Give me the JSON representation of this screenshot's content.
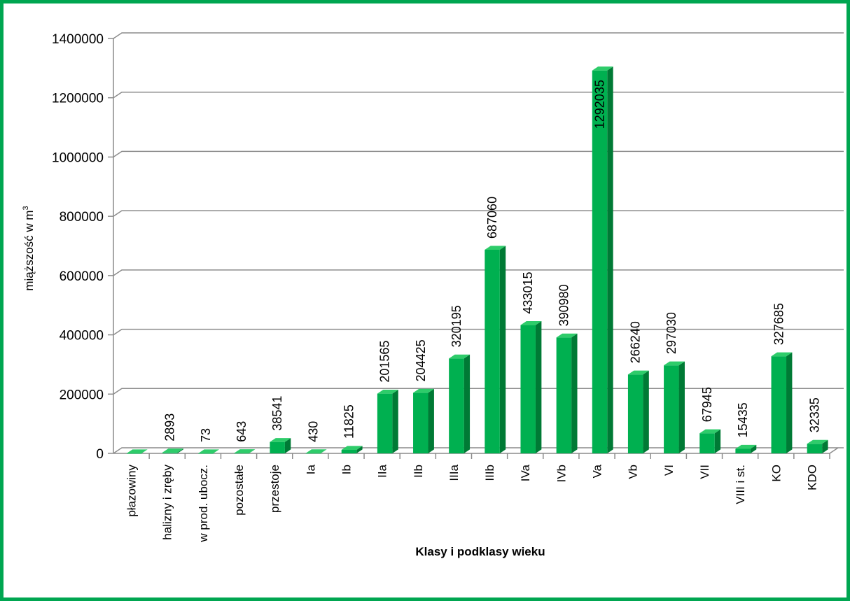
{
  "chart_data": {
    "type": "bar",
    "title": "",
    "xlabel": "Klasy i podklasy wieku",
    "ylabel_main": "miąższość w m",
    "ylabel_sup": "3",
    "ylim": [
      0,
      1400000
    ],
    "yticks": [
      0,
      200000,
      400000,
      600000,
      800000,
      1000000,
      1200000,
      1400000
    ],
    "grid": true,
    "bar_color": "#00b050",
    "categories": [
      "płazowiny",
      "halizny i zręby",
      "w prod. ubocz.",
      "pozostałe",
      "przestoje",
      "Ia",
      "Ib",
      "IIa",
      "IIb",
      "IIIa",
      "IIIb",
      "IVa",
      "IVb",
      "Va",
      "Vb",
      "VI",
      "VII",
      "VIII i st.",
      "KO",
      "KDO"
    ],
    "values": [
      0,
      2893,
      73,
      643,
      38541,
      430,
      11825,
      201565,
      204425,
      320195,
      687060,
      433015,
      390980,
      1292035,
      266240,
      297030,
      67945,
      15435,
      327685,
      32335
    ],
    "data_labels": [
      "",
      "2893",
      "73",
      "643",
      "38541",
      "430",
      "11825",
      "201565",
      "204425",
      "320195",
      "687060",
      "433015",
      "390980",
      "1292035",
      "266240",
      "297030",
      "67945",
      "15435",
      "327685",
      "32335"
    ]
  }
}
